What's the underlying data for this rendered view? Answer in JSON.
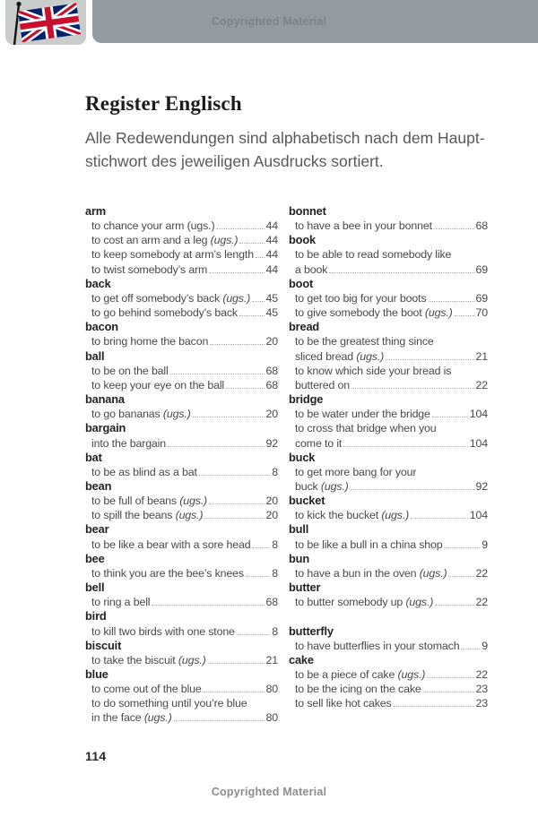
{
  "header": {
    "copyright": "Copyrighted Material",
    "flag_icon": "uk-flag-icon"
  },
  "page": {
    "title": "Register Englisch",
    "subtitle": "Alle Redewendungen sind alphabetisch nach dem Haupt-\nstichwort des jeweiligen Ausdrucks sortiert.",
    "page_number": "114"
  },
  "footer": {
    "copyright": "Copyrighted Material"
  },
  "colors": {
    "header_bar": "#949aa1",
    "header_text": "#7c828a",
    "flag_tile": "#c8cccb",
    "flag_blue": "#012169",
    "flag_red": "#C8102E",
    "flag_pole": "#141414",
    "title_text": "#1a1c1e",
    "subtitle_text": "#56595c",
    "headword_text": "#202325",
    "entry_text": "#47494c",
    "leader_dots": "#a7abad",
    "footer_text": "#8d8d8d"
  },
  "index": {
    "left_column": [
      {
        "type": "head",
        "text": "arm"
      },
      {
        "type": "entry",
        "text": "to chance your arm (ugs.)",
        "page": "44"
      },
      {
        "type": "entry",
        "text": "to cost an arm and a leg ",
        "ital": "(ugs.)",
        "page": "44"
      },
      {
        "type": "entry",
        "text": "to keep somebody at arm’s length",
        "page": "44"
      },
      {
        "type": "entry",
        "text": "to twist somebody’s arm",
        "page": "44"
      },
      {
        "type": "head",
        "text": "back"
      },
      {
        "type": "entry",
        "text": "to get off somebody’s back ",
        "ital": "(ugs.)",
        "page": "45"
      },
      {
        "type": "entry",
        "text": "to go behind somebody’s back",
        "page": "45"
      },
      {
        "type": "head",
        "text": "bacon"
      },
      {
        "type": "entry",
        "text": "to bring home the bacon",
        "page": "20"
      },
      {
        "type": "head",
        "text": "ball"
      },
      {
        "type": "entry",
        "text": "to be on the ball",
        "page": "68"
      },
      {
        "type": "entry",
        "text": "to keep your eye on the ball",
        "page": "68"
      },
      {
        "type": "head",
        "text": "banana"
      },
      {
        "type": "entry",
        "text": "to go bananas ",
        "ital": "(ugs.)",
        "page": "20"
      },
      {
        "type": "head",
        "text": "bargain"
      },
      {
        "type": "entry",
        "text": "into the bargain",
        "page": "92"
      },
      {
        "type": "head",
        "text": "bat"
      },
      {
        "type": "entry",
        "text": "to be as blind as a bat",
        "page": "8"
      },
      {
        "type": "head",
        "text": "bean"
      },
      {
        "type": "entry",
        "text": "to be full of beans ",
        "ital": "(ugs.)",
        "page": "20"
      },
      {
        "type": "entry",
        "text": "to spill the beans ",
        "ital": "(ugs.)",
        "page": "20"
      },
      {
        "type": "head",
        "text": "bear"
      },
      {
        "type": "entry",
        "text": "to be like a bear with a sore head",
        "page": "8"
      },
      {
        "type": "head",
        "text": "bee"
      },
      {
        "type": "entry",
        "text": "to think you are the bee’s knees",
        "page": "8"
      },
      {
        "type": "head",
        "text": "bell"
      },
      {
        "type": "entry",
        "text": "to ring a bell",
        "page": "68"
      },
      {
        "type": "head",
        "text": "bird"
      },
      {
        "type": "entry",
        "text": "to kill two birds with one stone",
        "page": "8"
      },
      {
        "type": "head",
        "text": "biscuit"
      },
      {
        "type": "entry",
        "text": "to take the biscuit ",
        "ital": "(ugs.)",
        "page": "21"
      },
      {
        "type": "head",
        "text": "blue"
      },
      {
        "type": "entry",
        "text": "to come out of the blue",
        "page": "80"
      },
      {
        "type": "entry",
        "text": "to do something until you’re blue"
      },
      {
        "type": "entry",
        "text": "in the face ",
        "ital": "(ugs.)",
        "page": "80"
      }
    ],
    "right_column": [
      {
        "type": "head",
        "text": "bonnet"
      },
      {
        "type": "entry",
        "text": "to have a bee in your bonnet",
        "page": "68"
      },
      {
        "type": "head",
        "text": "book"
      },
      {
        "type": "entry",
        "text": "to be able to read somebody like"
      },
      {
        "type": "entry",
        "text": "a book",
        "page": "69"
      },
      {
        "type": "head",
        "text": "boot"
      },
      {
        "type": "entry",
        "text": "to get too big for your boots",
        "page": "69"
      },
      {
        "type": "entry",
        "text": "to give somebody the boot ",
        "ital": "(ugs.)",
        "page": "70"
      },
      {
        "type": "head",
        "text": "bread"
      },
      {
        "type": "entry",
        "text": "to be the greatest thing since"
      },
      {
        "type": "entry",
        "text": "sliced bread ",
        "ital": "(ugs.)",
        "page": "21"
      },
      {
        "type": "entry",
        "text": "to know which side your bread is"
      },
      {
        "type": "entry",
        "text": "buttered on",
        "page": "22"
      },
      {
        "type": "head",
        "text": "bridge"
      },
      {
        "type": "entry",
        "text": "to be water under the bridge",
        "page": "104"
      },
      {
        "type": "entry",
        "text": "to cross that bridge when you"
      },
      {
        "type": "entry",
        "text": "come to it",
        "page": "104"
      },
      {
        "type": "head",
        "text": "buck"
      },
      {
        "type": "entry",
        "text": "to get more bang for your"
      },
      {
        "type": "entry",
        "text": "buck ",
        "ital": "(ugs.)",
        "page": "92"
      },
      {
        "type": "head",
        "text": "bucket"
      },
      {
        "type": "entry",
        "text": "to kick the bucket ",
        "ital": "(ugs.)",
        "page": "104"
      },
      {
        "type": "head",
        "text": "bull"
      },
      {
        "type": "entry",
        "text": "to be like a bull in a china shop",
        "page": "9"
      },
      {
        "type": "head",
        "text": "bun"
      },
      {
        "type": "entry",
        "text": "to have a bun in the oven ",
        "ital": "(ugs.)",
        "page": "22"
      },
      {
        "type": "head",
        "text": "butter"
      },
      {
        "type": "entry",
        "text": "to butter somebody up ",
        "ital": "(ugs.)",
        "page": "22"
      },
      {
        "type": "spacer"
      },
      {
        "type": "head",
        "text": "butterfly"
      },
      {
        "type": "entry",
        "text": "to have butterflies in your stomach",
        "page": "9"
      },
      {
        "type": "head",
        "text": "cake"
      },
      {
        "type": "entry",
        "text": "to be a piece of cake ",
        "ital": "(ugs.)",
        "page": "22"
      },
      {
        "type": "entry",
        "text": "to be the icing on the cake",
        "page": "23"
      },
      {
        "type": "entry",
        "text": "to sell like hot cakes",
        "page": "23"
      }
    ]
  }
}
